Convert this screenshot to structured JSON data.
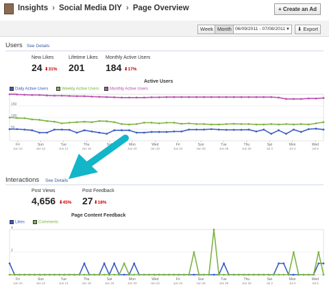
{
  "header": {
    "crumbs": [
      "Insights",
      "Social Media DIY",
      "Page Overview"
    ],
    "create_ad": "+ Create an Ad"
  },
  "toolbar": {
    "week": "Week",
    "month": "Month",
    "range": "06/09/2011 - 07/08/2011",
    "export": "Export"
  },
  "users": {
    "title": "Users",
    "details": "See Details",
    "metrics": [
      {
        "label": "New Likes",
        "value": "24",
        "delta": "31%"
      },
      {
        "label": "Lifetime Likes",
        "value": "201",
        "delta": ""
      },
      {
        "label": "Monthly Active Users",
        "value": "184",
        "delta": "17%"
      }
    ],
    "chart_title": "Active Users",
    "legend": [
      "Daily Active Users",
      "Weekly Active Users",
      "Monthly Active Users"
    ],
    "colors": [
      "#3b5cc4",
      "#7cb342",
      "#b84fb0"
    ]
  },
  "interactions": {
    "title": "Interactions",
    "details": "See Details",
    "metrics": [
      {
        "label": "Post Views",
        "value": "4,656",
        "delta": "45%"
      },
      {
        "label": "Post Feedback",
        "value": "27",
        "delta": "18%"
      }
    ],
    "chart_title": "Page Content Feedback",
    "legend": [
      "Likes",
      "Comments"
    ],
    "colors": [
      "#3b5cc4",
      "#7cb342"
    ]
  },
  "x_ticks": [
    {
      "d": "Fri",
      "dt": "Jun 10"
    },
    {
      "d": "Sun",
      "dt": "Jun 12"
    },
    {
      "d": "Tue",
      "dt": "Jun 14"
    },
    {
      "d": "Thu",
      "dt": "Jun 16"
    },
    {
      "d": "Sat",
      "dt": "Jun 18"
    },
    {
      "d": "Mon",
      "dt": "Jun 20"
    },
    {
      "d": "Wed",
      "dt": "Jun 22"
    },
    {
      "d": "Fri",
      "dt": "Jun 24"
    },
    {
      "d": "Sun",
      "dt": "Jun 26"
    },
    {
      "d": "Tue",
      "dt": "Jun 28"
    },
    {
      "d": "Thu",
      "dt": "Jun 30"
    },
    {
      "d": "Sat",
      "dt": "Jul 2"
    },
    {
      "d": "Mon",
      "dt": "Jul 4"
    },
    {
      "d": "Wed",
      "dt": "Jul 6"
    }
  ],
  "chart_data": [
    {
      "type": "line",
      "title": "Active Users",
      "ylim": [
        0,
        200
      ],
      "y_ticks": [
        50,
        100,
        150,
        200
      ],
      "series": [
        {
          "name": "Daily Active Users",
          "values": [
            50,
            50,
            48,
            45,
            35,
            35,
            48,
            48,
            47,
            35,
            45,
            40,
            35,
            30,
            45,
            45,
            45,
            35,
            35,
            38,
            38,
            38,
            40,
            40,
            48,
            48,
            48,
            50,
            48,
            47,
            47,
            47,
            48,
            40,
            48,
            30,
            45,
            30,
            48,
            38,
            50,
            52,
            48
          ]
        },
        {
          "name": "Weekly Active Users",
          "values": [
            100,
            98,
            97,
            92,
            90,
            85,
            82,
            75,
            78,
            80,
            82,
            80,
            85,
            84,
            80,
            72,
            70,
            72,
            78,
            78,
            75,
            78,
            78,
            73,
            75,
            72,
            72,
            70,
            70,
            72,
            73,
            72,
            72,
            70,
            70,
            72,
            70,
            72,
            70,
            72,
            70,
            75,
            80
          ]
        },
        {
          "name": "Monthly Active Users",
          "values": [
            200,
            199,
            198,
            197,
            197,
            195,
            194,
            194,
            193,
            192,
            192,
            190,
            189,
            188,
            187,
            186,
            186,
            186,
            186,
            187,
            187,
            188,
            188,
            188,
            188,
            188,
            188,
            188,
            188,
            188,
            188,
            188,
            188,
            188,
            188,
            188,
            186,
            180,
            180,
            180,
            182,
            182,
            184
          ]
        }
      ]
    },
    {
      "type": "line",
      "title": "Page Content Feedback",
      "ylim": [
        0,
        4
      ],
      "y_ticks": [
        2,
        4
      ],
      "series": [
        {
          "name": "Likes",
          "values": [
            1,
            0,
            0,
            0,
            0,
            0,
            0,
            0,
            0,
            0,
            0,
            0,
            0,
            0,
            0,
            1,
            0,
            0,
            0,
            1,
            0,
            1,
            0,
            0,
            0,
            1,
            0,
            0,
            0,
            0,
            0,
            0,
            0,
            0,
            0,
            0,
            0,
            0,
            0,
            0,
            0,
            0,
            0,
            1,
            0,
            0,
            0,
            0,
            0,
            0,
            0,
            0,
            0,
            0,
            1,
            1,
            0,
            0,
            0,
            0,
            0,
            0,
            1,
            1
          ]
        },
        {
          "name": "Comments",
          "values": [
            0,
            0,
            0,
            0,
            0,
            0,
            0,
            0,
            0,
            0,
            0,
            0,
            0,
            0,
            0,
            0,
            0,
            0,
            0,
            0,
            0,
            0,
            0,
            1,
            0,
            0,
            0,
            0,
            0,
            0,
            0,
            0,
            0,
            0,
            0,
            0,
            0,
            2,
            0,
            0,
            0,
            4,
            0,
            0,
            0,
            0,
            0,
            0,
            0,
            0,
            0,
            0,
            0,
            0,
            0,
            0,
            0,
            2,
            0,
            0,
            0,
            0,
            2,
            0
          ]
        }
      ]
    }
  ]
}
